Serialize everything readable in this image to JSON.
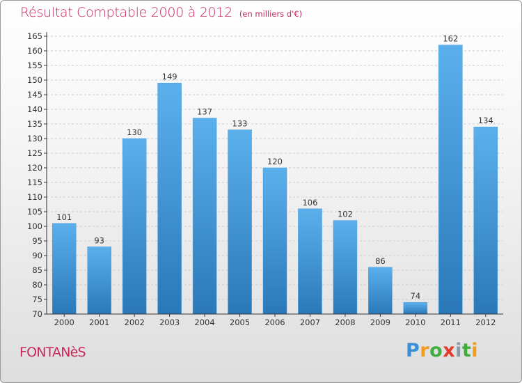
{
  "title": "Résultat Comptable 2000 à 2012",
  "subtitle": "(en milliers d'€)",
  "city": "FONTANèS",
  "brand": {
    "letters": [
      "P",
      "r",
      "o",
      "x",
      "i",
      "t",
      "i"
    ],
    "colors": [
      "#3a8fd8",
      "#f29a1a",
      "#3fae3f",
      "#e23a2a",
      "#8a9aa8",
      "#3fae3f",
      "#f29a1a"
    ]
  },
  "colors": {
    "title": "#c8285a",
    "bar_top": "#5bb0ec",
    "bar_bottom": "#2a78b8",
    "axis": "#333333",
    "grid": "#cccccc"
  },
  "chart_data": {
    "type": "bar",
    "title": "Résultat Comptable 2000 à 2012",
    "subtitle": "(en milliers d'€)",
    "categories": [
      "2000",
      "2001",
      "2002",
      "2003",
      "2004",
      "2005",
      "2006",
      "2007",
      "2008",
      "2009",
      "2010",
      "2011",
      "2012"
    ],
    "values": [
      101,
      93,
      130,
      149,
      137,
      133,
      120,
      106,
      102,
      86,
      74,
      162,
      134
    ],
    "ylim": [
      70,
      165
    ],
    "yticks": [
      70,
      75,
      80,
      85,
      90,
      95,
      100,
      105,
      110,
      115,
      120,
      125,
      130,
      135,
      140,
      145,
      150,
      155,
      160,
      165
    ],
    "grid": "horizontal dashed",
    "data_labels": true
  }
}
